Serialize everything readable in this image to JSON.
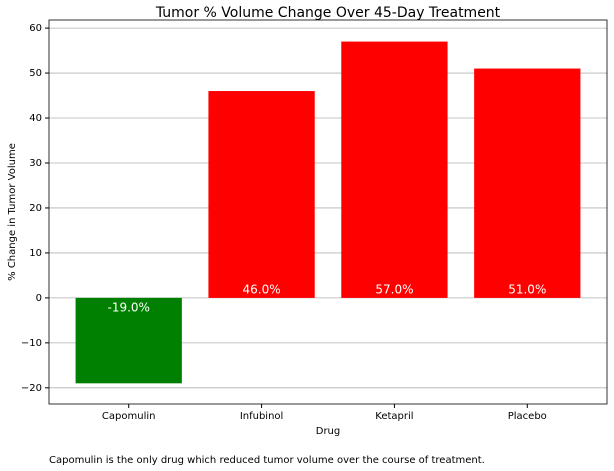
{
  "chart_data": {
    "type": "bar",
    "title": "Tumor % Volume Change Over 45-Day Treatment",
    "x_label": "Drug",
    "y_label": "% Change in Tumor Volume",
    "categories": [
      "Capomulin",
      "Infubinol",
      "Ketapril",
      "Placebo"
    ],
    "values": [
      -19.0,
      46.0,
      57.0,
      51.0
    ],
    "value_labels": [
      "-19.0%",
      "46.0%",
      "57.0%",
      "51.0%"
    ],
    "colors": [
      "#008000",
      "#ff0000",
      "#ff0000",
      "#ff0000"
    ],
    "ylim": [
      -23.6,
      61.8
    ],
    "yticks": [
      {
        "value": -20,
        "label": "−20"
      },
      {
        "value": -10,
        "label": "−10"
      },
      0,
      10,
      20,
      30,
      40,
      50,
      60
    ],
    "grid": true,
    "footnote": "Capomulin is the only drug which reduced tumor volume over the course of treatment."
  }
}
